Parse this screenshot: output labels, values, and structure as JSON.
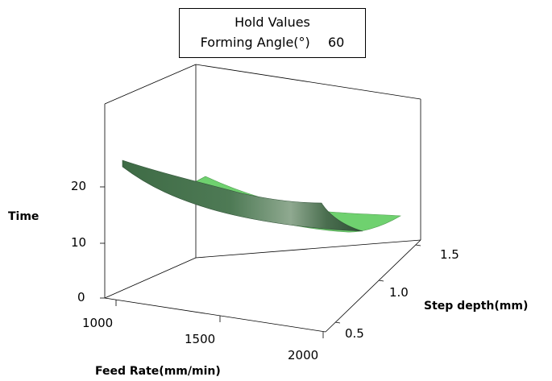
{
  "hold_values": {
    "title": "Hold Values",
    "variable": "Forming Angle(°)",
    "value": "60"
  },
  "chart_data": {
    "type": "surface",
    "zlabel": "Time",
    "xlabel": "Feed Rate(mm/min)",
    "ylabel": "Step depth(mm)",
    "x_ticks": [
      "1000",
      "1500",
      "2000"
    ],
    "y_ticks": [
      "0.5",
      "1.0",
      "1.5"
    ],
    "z_ticks": [
      "0",
      "10",
      "20"
    ],
    "x_range": [
      1000,
      2000
    ],
    "y_range": [
      0.4,
      1.6
    ],
    "z_range": [
      0,
      25
    ],
    "surface_colors": {
      "front": "#3f6b45",
      "back": "#6ccf6c"
    },
    "surface_samples": [
      {
        "feed_rate": 1000,
        "step_depth": 0.4,
        "time": 23.5
      },
      {
        "feed_rate": 1000,
        "step_depth": 1.6,
        "time": 18.0
      },
      {
        "feed_rate": 2000,
        "step_depth": 0.4,
        "time": 14.5
      },
      {
        "feed_rate": 2000,
        "step_depth": 1.6,
        "time": 11.0
      }
    ]
  }
}
